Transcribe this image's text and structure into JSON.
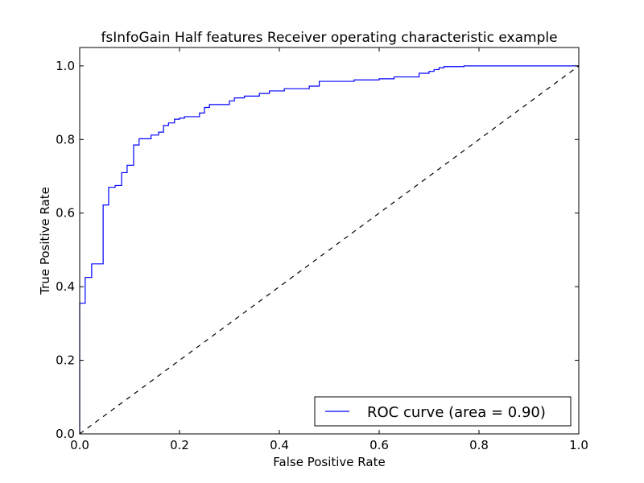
{
  "chart_data": {
    "type": "line",
    "title": "fsInfoGain Half features Receiver operating characteristic example",
    "xlabel": "False Positive Rate",
    "ylabel": "True Positive Rate",
    "xlim": [
      0.0,
      1.0
    ],
    "ylim": [
      0.0,
      1.05
    ],
    "xticks": [
      0.0,
      0.2,
      0.4,
      0.6,
      0.8,
      1.0
    ],
    "yticks": [
      0.0,
      0.2,
      0.4,
      0.6,
      0.8,
      1.0
    ],
    "xtick_labels": [
      "0.0",
      "0.2",
      "0.4",
      "0.6",
      "0.8",
      "1.0"
    ],
    "ytick_labels": [
      "0.0",
      "0.2",
      "0.4",
      "0.6",
      "0.8",
      "1.0"
    ],
    "grid": false,
    "legend_position": "lower-right",
    "series": [
      {
        "name": "ROC curve (area = 0.90)",
        "color": "#0000ff",
        "style": "solid",
        "x": [
          0.0,
          0.0,
          0.011,
          0.011,
          0.024,
          0.024,
          0.047,
          0.047,
          0.058,
          0.058,
          0.071,
          0.071,
          0.084,
          0.084,
          0.095,
          0.095,
          0.108,
          0.108,
          0.119,
          0.119,
          0.143,
          0.143,
          0.158,
          0.158,
          0.168,
          0.168,
          0.178,
          0.178,
          0.19,
          0.19,
          0.2,
          0.2,
          0.21,
          0.21,
          0.24,
          0.24,
          0.25,
          0.25,
          0.26,
          0.26,
          0.3,
          0.3,
          0.31,
          0.31,
          0.33,
          0.33,
          0.36,
          0.36,
          0.38,
          0.38,
          0.41,
          0.41,
          0.46,
          0.46,
          0.48,
          0.48,
          0.55,
          0.55,
          0.6,
          0.6,
          0.63,
          0.63,
          0.68,
          0.68,
          0.7,
          0.7,
          0.71,
          0.71,
          0.72,
          0.72,
          0.73,
          0.73,
          0.77,
          0.77,
          1.0
        ],
        "y": [
          0.0,
          0.355,
          0.355,
          0.425,
          0.425,
          0.462,
          0.462,
          0.622,
          0.622,
          0.67,
          0.67,
          0.675,
          0.675,
          0.71,
          0.71,
          0.73,
          0.73,
          0.785,
          0.785,
          0.802,
          0.802,
          0.812,
          0.812,
          0.82,
          0.82,
          0.838,
          0.838,
          0.845,
          0.845,
          0.855,
          0.855,
          0.858,
          0.858,
          0.862,
          0.862,
          0.872,
          0.872,
          0.887,
          0.887,
          0.895,
          0.895,
          0.905,
          0.905,
          0.913,
          0.913,
          0.918,
          0.918,
          0.925,
          0.925,
          0.932,
          0.932,
          0.938,
          0.938,
          0.945,
          0.945,
          0.958,
          0.958,
          0.962,
          0.962,
          0.965,
          0.965,
          0.97,
          0.97,
          0.98,
          0.98,
          0.985,
          0.985,
          0.99,
          0.99,
          0.995,
          0.995,
          0.998,
          0.998,
          1.0,
          1.0
        ]
      },
      {
        "color": "#000000",
        "style": "dashed",
        "x": [
          0.0,
          1.0
        ],
        "y": [
          0.0,
          1.0
        ]
      }
    ]
  }
}
